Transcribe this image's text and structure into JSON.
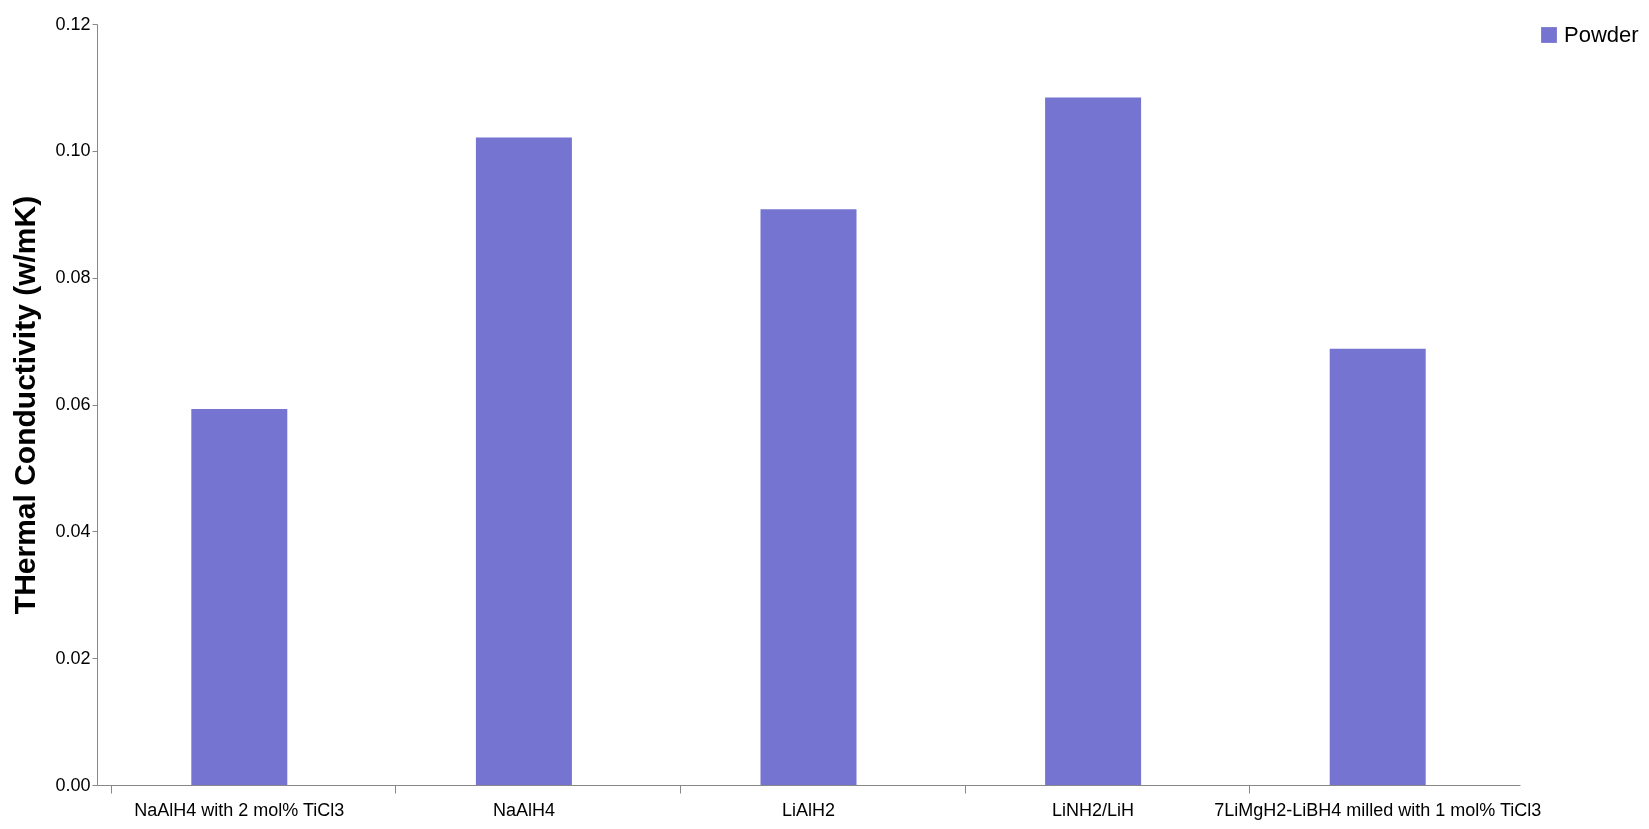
{
  "chart_data": {
    "type": "bar",
    "ylabel": "THermal Conductivity (w/mK)",
    "categories": [
      "NaAlH4 with 2 mol% TiCl3",
      "NaAlH4",
      "LiAlH2",
      "LiNH2/LiH",
      "7LiMgH2-LiBH4 milled with 1 mol% TiCl3"
    ],
    "series": [
      {
        "name": "Powder",
        "color": "#7575d1",
        "values": [
          0.0593,
          0.1021,
          0.0908,
          0.1084,
          0.0688
        ]
      }
    ],
    "ylim": [
      0,
      0.12
    ],
    "yticks": [
      {
        "value": 0,
        "label": "0.00"
      },
      {
        "value": 0.02,
        "label": "0.02"
      },
      {
        "value": 0.04,
        "label": "0.04"
      },
      {
        "value": 0.06,
        "label": "0.06"
      },
      {
        "value": 0.08,
        "label": "0.08"
      },
      {
        "value": 0.1,
        "label": "0.10"
      },
      {
        "value": 0.12,
        "label": "0.12"
      }
    ],
    "grid": false,
    "legend": "right"
  }
}
